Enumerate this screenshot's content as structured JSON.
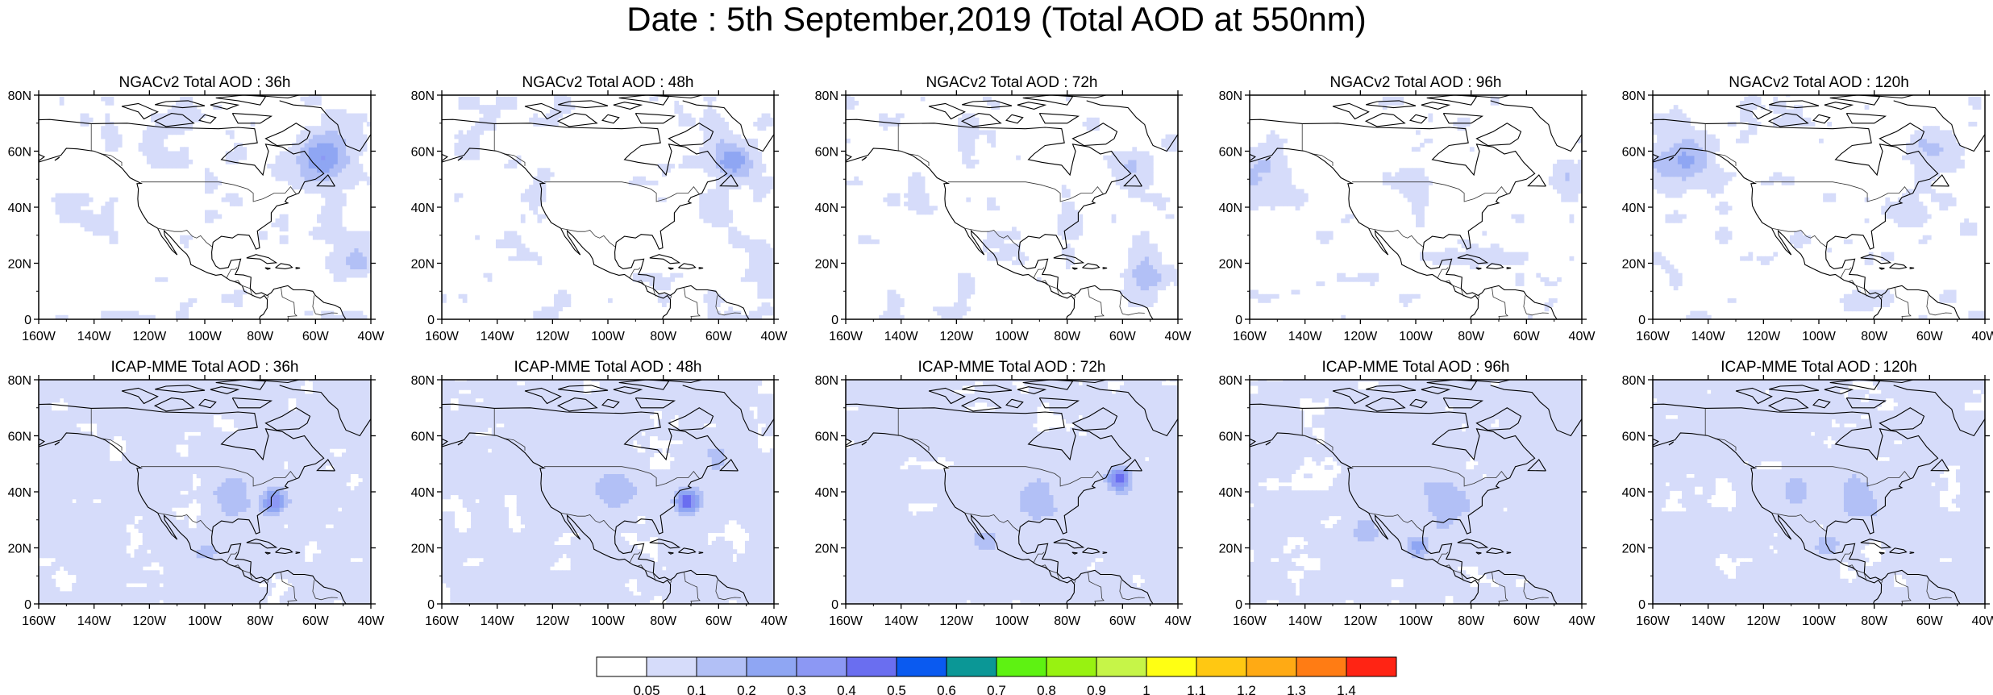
{
  "title": "Date : 5th September,2019 (Total AOD at 550nm)",
  "rows": [
    {
      "model": "NGACv2",
      "panels": [
        {
          "title": "NGACv2 Total AOD : 36h"
        },
        {
          "title": "NGACv2 Total AOD : 48h"
        },
        {
          "title": "NGACv2 Total AOD : 72h"
        },
        {
          "title": "NGACv2 Total AOD : 96h"
        },
        {
          "title": "NGACv2 Total AOD : 120h"
        }
      ]
    },
    {
      "model": "ICAP-MME",
      "panels": [
        {
          "title": "ICAP-MME Total AOD : 36h"
        },
        {
          "title": "ICAP-MME Total AOD : 48h"
        },
        {
          "title": "ICAP-MME Total AOD : 72h"
        },
        {
          "title": "ICAP-MME Total AOD : 96h"
        },
        {
          "title": "ICAP-MME Total AOD : 120h"
        }
      ]
    }
  ],
  "axes": {
    "lat_labels": [
      "80N",
      "60N",
      "40N",
      "20N",
      "0"
    ],
    "lon_labels": [
      "160W",
      "140W",
      "120W",
      "100W",
      "80W",
      "60W",
      "40W"
    ]
  },
  "colorbar": {
    "labels": [
      "0.05",
      "0.1",
      "0.2",
      "0.3",
      "0.4",
      "0.5",
      "0.6",
      "0.7",
      "0.8",
      "0.9",
      "1",
      "1.1",
      "1.2",
      "1.3",
      "1.4"
    ],
    "colors": [
      "#ffffff",
      "#d6dcfa",
      "#b2c0f6",
      "#8fa6f3",
      "#8c98f4",
      "#6a6ef0",
      "#0a5af0",
      "#0b9796",
      "#5ef212",
      "#98f211",
      "#c6f548",
      "#ffff13",
      "#ffc812",
      "#ffaa14",
      "#ff7c14",
      "#ff2414"
    ]
  }
}
